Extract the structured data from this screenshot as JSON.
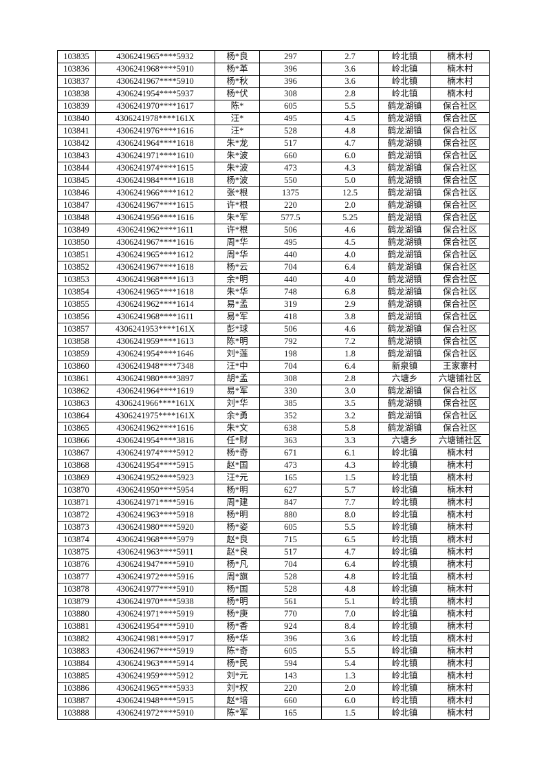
{
  "table": {
    "rows": [
      [
        "103835",
        "4306241965****5932",
        "杨*良",
        "297",
        "2.7",
        "岭北镇",
        "楠木村"
      ],
      [
        "103836",
        "4306241968****5910",
        "杨*革",
        "396",
        "3.6",
        "岭北镇",
        "楠木村"
      ],
      [
        "103837",
        "4306241967****5910",
        "杨*秋",
        "396",
        "3.6",
        "岭北镇",
        "楠木村"
      ],
      [
        "103838",
        "4306241954****5937",
        "杨*伏",
        "308",
        "2.8",
        "岭北镇",
        "楠木村"
      ],
      [
        "103839",
        "4306241970****1617",
        "陈*",
        "605",
        "5.5",
        "鹤龙湖镇",
        "保合社区"
      ],
      [
        "103840",
        "4306241978****161X",
        "汪*",
        "495",
        "4.5",
        "鹤龙湖镇",
        "保合社区"
      ],
      [
        "103841",
        "4306241976****1616",
        "汪*",
        "528",
        "4.8",
        "鹤龙湖镇",
        "保合社区"
      ],
      [
        "103842",
        "4306241964****1618",
        "朱*龙",
        "517",
        "4.7",
        "鹤龙湖镇",
        "保合社区"
      ],
      [
        "103843",
        "4306241971****1610",
        "朱*波",
        "660",
        "6.0",
        "鹤龙湖镇",
        "保合社区"
      ],
      [
        "103844",
        "4306241974****1615",
        "朱*波",
        "473",
        "4.3",
        "鹤龙湖镇",
        "保合社区"
      ],
      [
        "103845",
        "4306241984****1618",
        "杨*波",
        "550",
        "5.0",
        "鹤龙湖镇",
        "保合社区"
      ],
      [
        "103846",
        "4306241966****1612",
        "张*根",
        "1375",
        "12.5",
        "鹤龙湖镇",
        "保合社区"
      ],
      [
        "103847",
        "4306241967****1615",
        "许*根",
        "220",
        "2.0",
        "鹤龙湖镇",
        "保合社区"
      ],
      [
        "103848",
        "4306241956****1616",
        "朱*军",
        "577.5",
        "5.25",
        "鹤龙湖镇",
        "保合社区"
      ],
      [
        "103849",
        "4306241962****1611",
        "许*根",
        "506",
        "4.6",
        "鹤龙湖镇",
        "保合社区"
      ],
      [
        "103850",
        "4306241967****1616",
        "周*华",
        "495",
        "4.5",
        "鹤龙湖镇",
        "保合社区"
      ],
      [
        "103851",
        "4306241965****1612",
        "周*华",
        "440",
        "4.0",
        "鹤龙湖镇",
        "保合社区"
      ],
      [
        "103852",
        "4306241967****1618",
        "杨*云",
        "704",
        "6.4",
        "鹤龙湖镇",
        "保合社区"
      ],
      [
        "103853",
        "4306241968****1613",
        "余*明",
        "440",
        "4.0",
        "鹤龙湖镇",
        "保合社区"
      ],
      [
        "103854",
        "4306241965****1618",
        "朱*华",
        "748",
        "6.8",
        "鹤龙湖镇",
        "保合社区"
      ],
      [
        "103855",
        "4306241962****1614",
        "易*孟",
        "319",
        "2.9",
        "鹤龙湖镇",
        "保合社区"
      ],
      [
        "103856",
        "4306241968****1611",
        "易*军",
        "418",
        "3.8",
        "鹤龙湖镇",
        "保合社区"
      ],
      [
        "103857",
        "4306241953****161X",
        "彭*球",
        "506",
        "4.6",
        "鹤龙湖镇",
        "保合社区"
      ],
      [
        "103858",
        "4306241959****1613",
        "陈*明",
        "792",
        "7.2",
        "鹤龙湖镇",
        "保合社区"
      ],
      [
        "103859",
        "4306241954****1646",
        "刘*莲",
        "198",
        "1.8",
        "鹤龙湖镇",
        "保合社区"
      ],
      [
        "103860",
        "4306241948****7348",
        "汪*中",
        "704",
        "6.4",
        "新泉镇",
        "王家寨村"
      ],
      [
        "103861",
        "4306241980****3897",
        "胡*孟",
        "308",
        "2.8",
        "六塘乡",
        "六塘铺社区"
      ],
      [
        "103862",
        "4306241964****1619",
        "易*军",
        "330",
        "3.0",
        "鹤龙湖镇",
        "保合社区"
      ],
      [
        "103863",
        "4306241966****161X",
        "刘*华",
        "385",
        "3.5",
        "鹤龙湖镇",
        "保合社区"
      ],
      [
        "103864",
        "4306241975****161X",
        "余*勇",
        "352",
        "3.2",
        "鹤龙湖镇",
        "保合社区"
      ],
      [
        "103865",
        "4306241962****1616",
        "朱*文",
        "638",
        "5.8",
        "鹤龙湖镇",
        "保合社区"
      ],
      [
        "103866",
        "4306241954****3816",
        "任*财",
        "363",
        "3.3",
        "六塘乡",
        "六塘铺社区"
      ],
      [
        "103867",
        "4306241974****5912",
        "杨*奇",
        "671",
        "6.1",
        "岭北镇",
        "楠木村"
      ],
      [
        "103868",
        "4306241954****5915",
        "赵*国",
        "473",
        "4.3",
        "岭北镇",
        "楠木村"
      ],
      [
        "103869",
        "4306241952****5923",
        "汪*元",
        "165",
        "1.5",
        "岭北镇",
        "楠木村"
      ],
      [
        "103870",
        "4306241950****5954",
        "杨*明",
        "627",
        "5.7",
        "岭北镇",
        "楠木村"
      ],
      [
        "103871",
        "4306241971****5916",
        "周*建",
        "847",
        "7.7",
        "岭北镇",
        "楠木村"
      ],
      [
        "103872",
        "4306241963****5918",
        "杨*明",
        "880",
        "8.0",
        "岭北镇",
        "楠木村"
      ],
      [
        "103873",
        "4306241980****5920",
        "杨*姿",
        "605",
        "5.5",
        "岭北镇",
        "楠木村"
      ],
      [
        "103874",
        "4306241968****5979",
        "赵*良",
        "715",
        "6.5",
        "岭北镇",
        "楠木村"
      ],
      [
        "103875",
        "4306241963****5911",
        "赵*良",
        "517",
        "4.7",
        "岭北镇",
        "楠木村"
      ],
      [
        "103876",
        "4306241947****5910",
        "杨*凡",
        "704",
        "6.4",
        "岭北镇",
        "楠木村"
      ],
      [
        "103877",
        "4306241972****5916",
        "周*旗",
        "528",
        "4.8",
        "岭北镇",
        "楠木村"
      ],
      [
        "103878",
        "4306241977****5910",
        "杨*国",
        "528",
        "4.8",
        "岭北镇",
        "楠木村"
      ],
      [
        "103879",
        "4306241970****5938",
        "杨*明",
        "561",
        "5.1",
        "岭北镇",
        "楠木村"
      ],
      [
        "103880",
        "4306241971****5919",
        "杨*庚",
        "770",
        "7.0",
        "岭北镇",
        "楠木村"
      ],
      [
        "103881",
        "4306241954****5910",
        "杨*香",
        "924",
        "8.4",
        "岭北镇",
        "楠木村"
      ],
      [
        "103882",
        "4306241981****5917",
        "杨*华",
        "396",
        "3.6",
        "岭北镇",
        "楠木村"
      ],
      [
        "103883",
        "4306241967****5919",
        "陈*奇",
        "605",
        "5.5",
        "岭北镇",
        "楠木村"
      ],
      [
        "103884",
        "4306241963****5914",
        "杨*民",
        "594",
        "5.4",
        "岭北镇",
        "楠木村"
      ],
      [
        "103885",
        "4306241959****5912",
        "刘*元",
        "143",
        "1.3",
        "岭北镇",
        "楠木村"
      ],
      [
        "103886",
        "4306241965****5933",
        "刘*权",
        "220",
        "2.0",
        "岭北镇",
        "楠木村"
      ],
      [
        "103887",
        "4306241948****5915",
        "赵*培",
        "660",
        "6.0",
        "岭北镇",
        "楠木村"
      ],
      [
        "103888",
        "4306241972****5910",
        "陈*军",
        "165",
        "1.5",
        "岭北镇",
        "楠木村"
      ]
    ]
  }
}
